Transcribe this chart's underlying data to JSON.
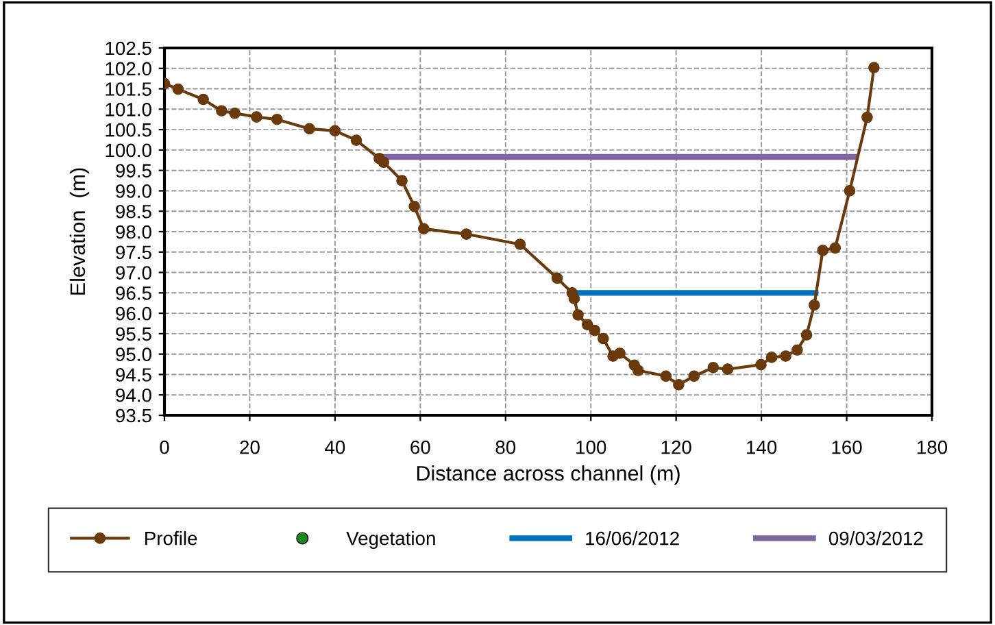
{
  "chart_data": {
    "type": "line",
    "xlabel": "Distance across channel (m)",
    "ylabel": "Elevation  (m)",
    "xlim": [
      0,
      180
    ],
    "xticks": [
      0,
      20,
      40,
      60,
      80,
      100,
      120,
      140,
      160,
      180
    ],
    "ylim": [
      93.5,
      102.5
    ],
    "yticks": [
      {
        "value": 93.5,
        "label": "93.5"
      },
      {
        "value": 94,
        "label": "94.0"
      },
      {
        "value": 94.5,
        "label": "94.5"
      },
      {
        "value": 95,
        "label": "95.0"
      },
      {
        "value": 95.5,
        "label": "95.5"
      },
      {
        "value": 96,
        "label": "96.0"
      },
      {
        "value": 96.5,
        "label": "96.5"
      },
      {
        "value": 97,
        "label": "97.0"
      },
      {
        "value": 97.5,
        "label": "97.5"
      },
      {
        "value": 98,
        "label": "98.0"
      },
      {
        "value": 98.5,
        "label": "98.5"
      },
      {
        "value": 99,
        "label": "99.0"
      },
      {
        "value": 99.5,
        "label": "99.5"
      },
      {
        "value": 100,
        "label": "100.0"
      },
      {
        "value": 100.5,
        "label": "100.5"
      },
      {
        "value": 101,
        "label": "101.0"
      },
      {
        "value": 101.5,
        "label": "101.5"
      },
      {
        "value": 102,
        "label": "102.0"
      },
      {
        "value": 102.5,
        "label": "102.5"
      }
    ],
    "grid": true,
    "legend": "bottom",
    "series": [
      {
        "name": "Profile",
        "color": "#6b3a0c",
        "marker": "circle",
        "x": [
          0,
          3.2,
          9.1,
          13.4,
          16.5,
          21.6,
          26.4,
          34.0,
          40.0,
          45.0,
          50.4,
          51.4,
          55.7,
          58.6,
          60.8,
          70.8,
          83.4,
          92.1,
          95.6,
          96.1,
          97.0,
          99.2,
          100.9,
          102.9,
          105.2,
          106.8,
          110.2,
          111.1,
          117.6,
          120.6,
          124.2,
          128.7,
          132.1,
          139.9,
          142.4,
          145.7,
          148.4,
          150.6,
          152.4,
          154.4,
          157.3,
          160.7,
          164.8,
          166.4
        ],
        "values": [
          101.63,
          101.49,
          101.24,
          100.96,
          100.9,
          100.81,
          100.75,
          100.52,
          100.47,
          100.24,
          99.79,
          99.7,
          99.25,
          98.62,
          98.07,
          97.94,
          97.69,
          96.86,
          96.5,
          96.36,
          95.96,
          95.72,
          95.58,
          95.38,
          94.95,
          95.02,
          94.73,
          94.6,
          94.46,
          94.25,
          94.46,
          94.67,
          94.63,
          94.74,
          94.92,
          94.95,
          95.1,
          95.47,
          96.2,
          97.54,
          97.6,
          99.0,
          100.8,
          102.02
        ]
      },
      {
        "name": "Vegetation",
        "color": "#1a8a1a",
        "type": "scatter",
        "marker": "circle"
      },
      {
        "name": "16/06/2012",
        "color": "#0070c0",
        "marker": "none",
        "x": [
          95.6,
          152.7
        ],
        "values": [
          96.5,
          96.5
        ]
      },
      {
        "name": "09/03/2012",
        "color": "#8064a2",
        "marker": "none",
        "x": [
          49.8,
          162.0
        ],
        "values": [
          99.83,
          99.83
        ]
      }
    ]
  }
}
